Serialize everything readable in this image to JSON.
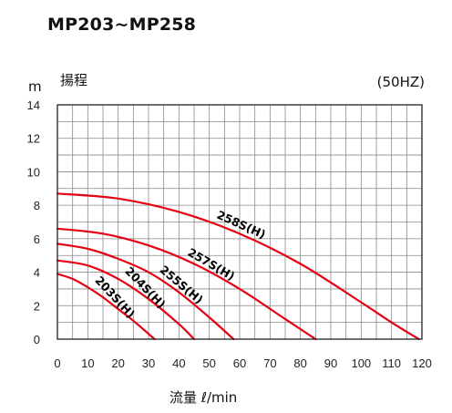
{
  "chart_data": {
    "type": "line",
    "title": "MP203~MP258",
    "xlabel": "流量 ℓ/min",
    "ylabel": "揚程",
    "y_unit": "m",
    "frequency_note": "(50HZ)",
    "xlim": [
      0,
      120
    ],
    "ylim": [
      0,
      14
    ],
    "xticks": [
      0,
      10,
      20,
      30,
      40,
      50,
      60,
      70,
      80,
      90,
      100,
      110,
      120
    ],
    "yticks": [
      0,
      2,
      4,
      6,
      8,
      10,
      12,
      14
    ],
    "x_minor_step": 5,
    "y_minor_step": 1,
    "grid": true,
    "line_color": "#e60012",
    "series": [
      {
        "name": "258S(H)",
        "x": [
          0,
          20,
          40,
          60,
          80,
          100,
          110,
          119
        ],
        "y": [
          8.7,
          8.4,
          7.6,
          6.3,
          4.5,
          2.2,
          1.0,
          0
        ]
      },
      {
        "name": "257S(H)",
        "x": [
          0,
          15,
          30,
          45,
          60,
          75,
          85
        ],
        "y": [
          6.6,
          6.3,
          5.6,
          4.5,
          3.0,
          1.2,
          0
        ]
      },
      {
        "name": "255S(H)",
        "x": [
          0,
          10,
          20,
          30,
          40,
          50,
          58
        ],
        "y": [
          5.7,
          5.4,
          4.8,
          4.0,
          2.8,
          1.3,
          0
        ]
      },
      {
        "name": "204S(H)",
        "x": [
          0,
          10,
          20,
          30,
          40,
          45
        ],
        "y": [
          4.7,
          4.4,
          3.6,
          2.4,
          0.9,
          0
        ]
      },
      {
        "name": "203S(H)",
        "x": [
          0,
          5,
          10,
          15,
          20,
          25,
          32
        ],
        "y": [
          3.9,
          3.6,
          3.1,
          2.5,
          1.8,
          1.1,
          0
        ]
      }
    ]
  }
}
